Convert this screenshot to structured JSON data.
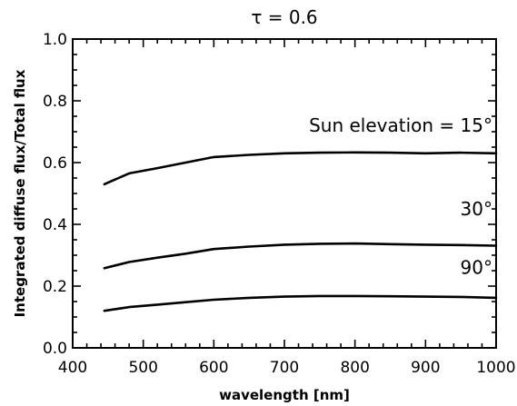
{
  "chart_data": {
    "type": "line",
    "title": "τ = 0.6",
    "xlabel": "wavelength [nm]",
    "ylabel": "Integrated diffuse flux/Total flux",
    "xlim": [
      400,
      1000
    ],
    "ylim": [
      0.0,
      1.0
    ],
    "xticks": [
      400,
      500,
      600,
      700,
      800,
      900,
      1000
    ],
    "xtick_labels": [
      "400",
      "500",
      "600",
      "700",
      "800",
      "900",
      "1000"
    ],
    "yticks": [
      0.0,
      0.2,
      0.4,
      0.6,
      0.8,
      1.0
    ],
    "ytick_labels": [
      "0.0",
      "0.2",
      "0.4",
      "0.6",
      "0.8",
      "1.0"
    ],
    "grid": false,
    "legend": "none",
    "series": [
      {
        "x": [
          445,
          480,
          520,
          560,
          600,
          650,
          700,
          750,
          800,
          850,
          900,
          950,
          1000
        ],
        "y": [
          0.53,
          0.565,
          0.582,
          0.6,
          0.618,
          0.625,
          0.63,
          0.632,
          0.633,
          0.632,
          0.63,
          0.632,
          0.63
        ]
      },
      {
        "x": [
          445,
          480,
          520,
          560,
          600,
          650,
          700,
          750,
          800,
          850,
          900,
          950,
          1000
        ],
        "y": [
          0.258,
          0.278,
          0.292,
          0.305,
          0.32,
          0.328,
          0.334,
          0.337,
          0.338,
          0.336,
          0.334,
          0.333,
          0.331
        ]
      },
      {
        "x": [
          445,
          480,
          520,
          560,
          600,
          650,
          700,
          750,
          800,
          850,
          900,
          950,
          1000
        ],
        "y": [
          0.12,
          0.132,
          0.14,
          0.148,
          0.156,
          0.162,
          0.166,
          0.168,
          0.168,
          0.167,
          0.166,
          0.165,
          0.162
        ]
      }
    ],
    "annotations": [
      {
        "text": "Sun elevation = 15°",
        "x": 1000,
        "y": 0.7,
        "anchor": "end"
      },
      {
        "text": "30°",
        "x": 1000,
        "y": 0.43,
        "anchor": "end"
      },
      {
        "text": "90°",
        "x": 1000,
        "y": 0.24,
        "anchor": "end"
      }
    ],
    "colors": {
      "line": "#000000",
      "axis": "#000000"
    }
  }
}
